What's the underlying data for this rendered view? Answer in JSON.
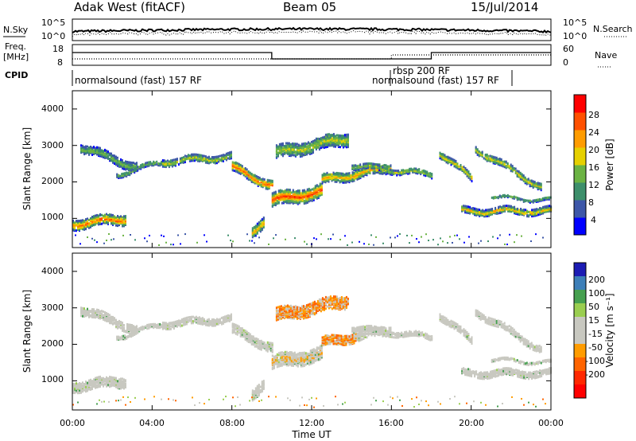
{
  "header": {
    "title": "Adak West (fitACF)",
    "beam": "Beam 05",
    "date": "15/Jul/2014"
  },
  "panels": {
    "nsky_label": "N.Sky",
    "nsearch_label": "N.Search",
    "freq_label": "Freq.",
    "freq_unit": "[MHz]",
    "nave_label": "Nave",
    "cpid_label": "CPID",
    "cpid_segments": [
      "normalsound (fast) 157 RF",
      "rbsp 200 RF",
      "normalsound (fast) 157 RF"
    ]
  },
  "colors": {
    "power_scale": [
      "#0000ff",
      "#3d57a8",
      "#3d8f6b",
      "#6bb343",
      "#e6d000",
      "#ff9c00",
      "#ff5000",
      "#ff0000"
    ],
    "velocity_scale": [
      "#1c1cb4",
      "#3d7fb8",
      "#46a050",
      "#9ace50",
      "#c8c8c0",
      "#c8c8c0",
      "#ff9c00",
      "#ff6400",
      "#ff2800",
      "#ff0000"
    ]
  },
  "chart_data": [
    {
      "type": "line",
      "title": "Adak West (fitACF)",
      "ylabel": "N.Sky",
      "ylim": [
        "10^0",
        "10^5"
      ],
      "y_tick_labels": [
        "10^5",
        "10^0"
      ],
      "right_ylabel": "N.Search",
      "right_tick_labels": [
        "10^5",
        "10^0"
      ]
    },
    {
      "type": "line",
      "ylabel": "Freq. [MHz]",
      "y_tick_labels": [
        "18",
        "8"
      ],
      "right_ylabel": "Nave",
      "right_tick_labels": [
        "60",
        "0"
      ],
      "series": [
        {
          "name": "Freq.",
          "x": [
            0,
            10,
            10,
            18,
            18,
            24
          ],
          "values": [
            10.5,
            10.5,
            9.0,
            9.0,
            10.5,
            10.5
          ]
        },
        {
          "name": "Nave",
          "x": [
            0,
            16,
            16,
            24
          ],
          "values": [
            8,
            8,
            17,
            17
          ]
        }
      ]
    },
    {
      "type": "table",
      "ylabel": "CPID",
      "segments": [
        {
          "start": 0,
          "end": 16,
          "label": "normalsound (fast) 157 RF"
        },
        {
          "start": 16,
          "end": 17.2,
          "label": "rbsp 200 RF"
        },
        {
          "start": 17.2,
          "end": 24,
          "label": "normalsound (fast) 157 RF"
        }
      ]
    },
    {
      "type": "heatmap",
      "ylabel": "Slant Range [km]",
      "xlim": [
        0,
        24
      ],
      "ylim": [
        200,
        4500
      ],
      "y_tick_labels": [
        "1000",
        "2000",
        "3000",
        "4000"
      ],
      "colorbar_label": "Power [dB]",
      "colorbar_ticks": [
        "28",
        "24",
        "20",
        "16",
        "12",
        "8",
        "4"
      ],
      "colorbar_range": [
        0,
        32
      ]
    },
    {
      "type": "heatmap",
      "ylabel": "Slant Range [km]",
      "xlabel": "Time UT",
      "xlim": [
        0,
        24
      ],
      "ylim": [
        200,
        4500
      ],
      "x_tick_labels": [
        "00:00",
        "04:00",
        "08:00",
        "12:00",
        "16:00",
        "20:00",
        "00:00"
      ],
      "y_tick_labels": [
        "1000",
        "2000",
        "3000",
        "4000"
      ],
      "colorbar_label": "Velocity [m s⁻¹]",
      "colorbar_ticks": [
        "200",
        "100",
        "50",
        "15",
        "-15",
        "-50",
        "-100",
        "-200"
      ],
      "colorbar_range": [
        -250,
        250
      ]
    }
  ]
}
